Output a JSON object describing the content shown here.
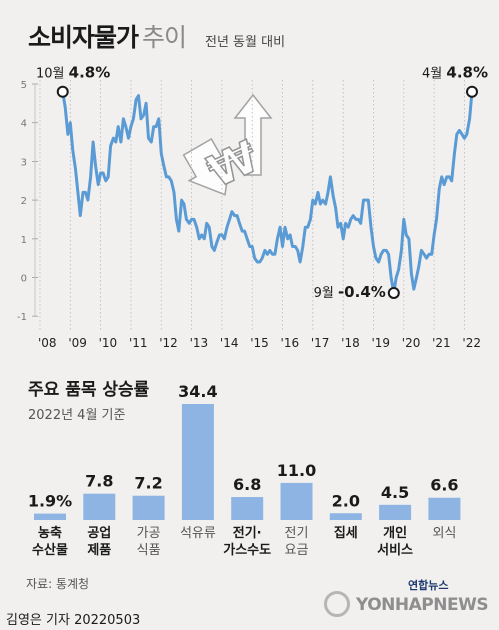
{
  "header": {
    "title_main": "소비자물가",
    "title_sub": "추이",
    "basis": "전년 동월 대비"
  },
  "chart_data": [
    {
      "type": "line",
      "ylim": [
        -1,
        5
      ],
      "yticks": [
        "-1",
        "0",
        "1",
        "2",
        "3",
        "4",
        "5"
      ],
      "xticks": [
        "'08",
        "'09",
        "'10",
        "'11",
        "'12",
        "'13",
        "'14",
        "'15",
        "'16",
        "'17",
        "'18",
        "'19",
        "'20",
        "'21",
        "'22"
      ],
      "color": "#5b9bd5",
      "x": [
        2008.75,
        2008.83,
        2008.92,
        2009.0,
        2009.08,
        2009.17,
        2009.25,
        2009.33,
        2009.42,
        2009.5,
        2009.58,
        2009.67,
        2009.75,
        2009.83,
        2009.92,
        2010.0,
        2010.08,
        2010.17,
        2010.25,
        2010.33,
        2010.42,
        2010.5,
        2010.58,
        2010.67,
        2010.75,
        2010.83,
        2010.92,
        2011.0,
        2011.08,
        2011.17,
        2011.25,
        2011.33,
        2011.42,
        2011.5,
        2011.58,
        2011.67,
        2011.75,
        2011.83,
        2011.92,
        2012.0,
        2012.08,
        2012.17,
        2012.25,
        2012.33,
        2012.42,
        2012.5,
        2012.58,
        2012.67,
        2012.75,
        2012.83,
        2012.92,
        2013.0,
        2013.08,
        2013.17,
        2013.25,
        2013.33,
        2013.42,
        2013.5,
        2013.58,
        2013.67,
        2013.75,
        2013.83,
        2013.92,
        2014.0,
        2014.08,
        2014.17,
        2014.25,
        2014.33,
        2014.42,
        2014.5,
        2014.58,
        2014.67,
        2014.75,
        2014.83,
        2014.92,
        2015.0,
        2015.08,
        2015.17,
        2015.25,
        2015.33,
        2015.42,
        2015.5,
        2015.58,
        2015.67,
        2015.75,
        2015.83,
        2015.92,
        2016.0,
        2016.08,
        2016.17,
        2016.25,
        2016.33,
        2016.42,
        2016.5,
        2016.58,
        2016.67,
        2016.75,
        2016.83,
        2016.92,
        2017.0,
        2017.08,
        2017.17,
        2017.25,
        2017.33,
        2017.42,
        2017.5,
        2017.58,
        2017.67,
        2017.75,
        2017.83,
        2017.92,
        2018.0,
        2018.08,
        2018.17,
        2018.25,
        2018.33,
        2018.42,
        2018.5,
        2018.58,
        2018.67,
        2018.75,
        2018.83,
        2018.92,
        2019.0,
        2019.08,
        2019.17,
        2019.25,
        2019.33,
        2019.42,
        2019.5,
        2019.58,
        2019.67,
        2019.75,
        2019.83,
        2019.92,
        2020.0,
        2020.08,
        2020.17,
        2020.25,
        2020.33,
        2020.42,
        2020.5,
        2020.58,
        2020.67,
        2020.75,
        2020.83,
        2020.92,
        2021.0,
        2021.08,
        2021.17,
        2021.25,
        2021.33,
        2021.42,
        2021.5,
        2021.58,
        2021.67,
        2021.75,
        2021.83,
        2021.92,
        2022.0,
        2022.08,
        2022.17,
        2022.25
      ],
      "values": [
        4.8,
        4.4,
        3.7,
        4.0,
        3.3,
        2.8,
        2.2,
        1.6,
        2.2,
        2.2,
        2.0,
        2.6,
        3.5,
        2.9,
        2.4,
        2.7,
        2.7,
        2.5,
        2.6,
        3.4,
        3.6,
        3.5,
        3.9,
        3.5,
        4.1,
        3.9,
        3.6,
        3.9,
        4.1,
        4.6,
        4.7,
        4.1,
        4.2,
        4.5,
        3.6,
        3.5,
        3.9,
        3.9,
        4.1,
        3.2,
        2.9,
        2.6,
        2.6,
        2.5,
        2.2,
        1.5,
        1.2,
        2.0,
        1.9,
        1.5,
        1.4,
        1.5,
        1.5,
        1.3,
        1.0,
        1.1,
        1.0,
        1.4,
        1.3,
        0.8,
        0.7,
        0.9,
        1.1,
        1.1,
        1.0,
        1.3,
        1.5,
        1.7,
        1.6,
        1.6,
        1.4,
        1.2,
        1.2,
        1.0,
        0.8,
        0.8,
        0.5,
        0.4,
        0.4,
        0.5,
        0.7,
        0.6,
        0.7,
        0.6,
        0.6,
        1.0,
        1.3,
        0.8,
        1.3,
        1.0,
        1.1,
        0.8,
        0.8,
        0.7,
        0.4,
        0.8,
        1.3,
        1.3,
        1.5,
        2.0,
        1.9,
        2.2,
        1.9,
        2.0,
        1.9,
        2.2,
        2.6,
        2.1,
        1.8,
        1.3,
        1.4,
        1.0,
        1.4,
        1.3,
        1.5,
        1.6,
        1.5,
        1.5,
        1.4,
        2.0,
        2.0,
        2.0,
        1.3,
        0.8,
        0.5,
        0.4,
        0.6,
        0.7,
        0.7,
        0.6,
        0.0,
        -0.4,
        0.0,
        0.2,
        0.7,
        1.5,
        1.1,
        1.0,
        0.1,
        -0.3,
        0.0,
        0.3,
        0.7,
        0.6,
        0.5,
        0.6,
        0.6,
        1.1,
        1.5,
        2.3,
        2.6,
        2.4,
        2.6,
        2.6,
        2.5,
        3.2,
        3.7,
        3.8,
        3.7,
        3.6,
        3.7,
        4.1,
        4.8
      ],
      "annotations": [
        {
          "label_month": "10월",
          "label_value": "4.8%"
        },
        {
          "label_month": "9월",
          "label_value": "-0.4%"
        },
        {
          "label_month": "4월",
          "label_value": "4.8%"
        }
      ]
    },
    {
      "type": "bar",
      "title": "주요 품목 상승률",
      "subtitle": "2022년 4월 기준",
      "color": "#8db4e2",
      "categories": [
        {
          "line1": "농축",
          "line2": "수산물",
          "bold": true
        },
        {
          "line1": "공업",
          "line2": "제품",
          "bold": true
        },
        {
          "line1": "가공",
          "line2": "식품",
          "bold": false
        },
        {
          "line1": "석유류",
          "line2": "",
          "bold": false
        },
        {
          "line1": "전기·",
          "line2": "가스수도",
          "bold": true
        },
        {
          "line1": "전기",
          "line2": "요금",
          "bold": false
        },
        {
          "line1": "집세",
          "line2": "",
          "bold": true
        },
        {
          "line1": "개인",
          "line2": "서비스",
          "bold": true
        },
        {
          "line1": "외식",
          "line2": "",
          "bold": false
        }
      ],
      "values": [
        1.9,
        7.8,
        7.2,
        34.4,
        6.8,
        11.0,
        2.0,
        4.5,
        6.6
      ],
      "value_labels": [
        "1.9%",
        "7.8",
        "7.2",
        "34.4",
        "6.8",
        "11.0",
        "2.0",
        "4.5",
        "6.6"
      ]
    }
  ],
  "footer": {
    "source": "자료: 통계청",
    "credit": "김영은 기자  20220503",
    "logo_ko": "연합뉴스",
    "logo_en": "YONHAPNEWS"
  }
}
